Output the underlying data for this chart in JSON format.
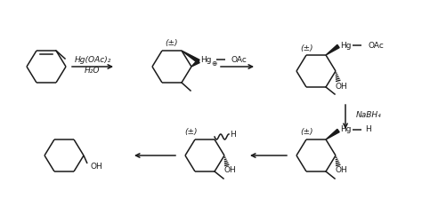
{
  "bg_color": "#ffffff",
  "lc": "#1a1a1a",
  "tc": "#1a1a1a",
  "fs": 6.5,
  "lw": 1.1,
  "reagent1": "Hg(OAc)₂",
  "reagent1b": "H₂O",
  "reagent2": "NaBH₄",
  "pm": "(±)"
}
